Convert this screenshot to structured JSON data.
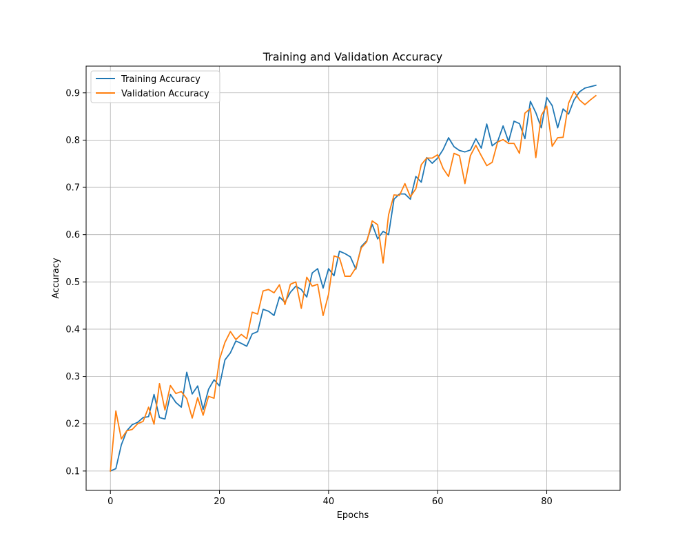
{
  "chart_data": {
    "type": "line",
    "title": "Training and Validation Accuracy",
    "xlabel": "Epochs",
    "ylabel": "Accuracy",
    "xlim": [
      -4.45,
      93.45
    ],
    "ylim": [
      0.059,
      0.9565
    ],
    "xticks": [
      0,
      20,
      40,
      60,
      80
    ],
    "yticks": [
      0.1,
      0.2,
      0.3,
      0.4,
      0.5,
      0.6,
      0.7,
      0.8,
      0.9
    ],
    "grid": true,
    "legend_position": "upper-left",
    "x": [
      0,
      1,
      2,
      3,
      4,
      5,
      6,
      7,
      8,
      9,
      10,
      11,
      12,
      13,
      14,
      15,
      16,
      17,
      18,
      19,
      20,
      21,
      22,
      23,
      24,
      25,
      26,
      27,
      28,
      29,
      30,
      31,
      32,
      33,
      34,
      35,
      36,
      37,
      38,
      39,
      40,
      41,
      42,
      43,
      44,
      45,
      46,
      47,
      48,
      49,
      50,
      51,
      52,
      53,
      54,
      55,
      56,
      57,
      58,
      59,
      60,
      61,
      62,
      63,
      64,
      65,
      66,
      67,
      68,
      69,
      70,
      71,
      72,
      73,
      74,
      75,
      76,
      77,
      78,
      79,
      80,
      81,
      82,
      83,
      84,
      85,
      86,
      87,
      88,
      89
    ],
    "series": [
      {
        "name": "Training Accuracy",
        "color": "#1f77b4",
        "values": [
          0.1,
          0.105,
          0.155,
          0.185,
          0.198,
          0.203,
          0.213,
          0.215,
          0.262,
          0.213,
          0.21,
          0.262,
          0.245,
          0.235,
          0.309,
          0.263,
          0.28,
          0.23,
          0.273,
          0.293,
          0.28,
          0.335,
          0.35,
          0.375,
          0.37,
          0.364,
          0.39,
          0.395,
          0.442,
          0.438,
          0.429,
          0.468,
          0.457,
          0.478,
          0.491,
          0.484,
          0.468,
          0.519,
          0.528,
          0.487,
          0.528,
          0.513,
          0.565,
          0.56,
          0.553,
          0.527,
          0.575,
          0.587,
          0.622,
          0.591,
          0.607,
          0.6,
          0.675,
          0.686,
          0.686,
          0.675,
          0.723,
          0.711,
          0.763,
          0.751,
          0.762,
          0.78,
          0.805,
          0.786,
          0.778,
          0.775,
          0.779,
          0.803,
          0.783,
          0.834,
          0.788,
          0.797,
          0.83,
          0.797,
          0.84,
          0.835,
          0.803,
          0.882,
          0.858,
          0.826,
          0.89,
          0.873,
          0.826,
          0.866,
          0.855,
          0.885,
          0.902,
          0.91,
          0.913,
          0.916
        ]
      },
      {
        "name": "Validation Accuracy",
        "color": "#ff7f0e",
        "values": [
          0.1,
          0.227,
          0.168,
          0.185,
          0.188,
          0.2,
          0.205,
          0.235,
          0.199,
          0.285,
          0.229,
          0.281,
          0.264,
          0.268,
          0.253,
          0.212,
          0.255,
          0.218,
          0.258,
          0.254,
          0.336,
          0.372,
          0.395,
          0.378,
          0.389,
          0.38,
          0.436,
          0.432,
          0.481,
          0.484,
          0.477,
          0.494,
          0.452,
          0.495,
          0.5,
          0.444,
          0.51,
          0.491,
          0.495,
          0.429,
          0.474,
          0.555,
          0.551,
          0.512,
          0.512,
          0.53,
          0.572,
          0.585,
          0.629,
          0.621,
          0.54,
          0.642,
          0.684,
          0.683,
          0.708,
          0.68,
          0.697,
          0.748,
          0.762,
          0.762,
          0.769,
          0.74,
          0.723,
          0.772,
          0.767,
          0.708,
          0.767,
          0.789,
          0.767,
          0.746,
          0.753,
          0.796,
          0.801,
          0.793,
          0.793,
          0.772,
          0.857,
          0.867,
          0.763,
          0.852,
          0.872,
          0.787,
          0.805,
          0.806,
          0.878,
          0.903,
          0.885,
          0.875,
          0.885,
          0.894
        ]
      }
    ]
  }
}
